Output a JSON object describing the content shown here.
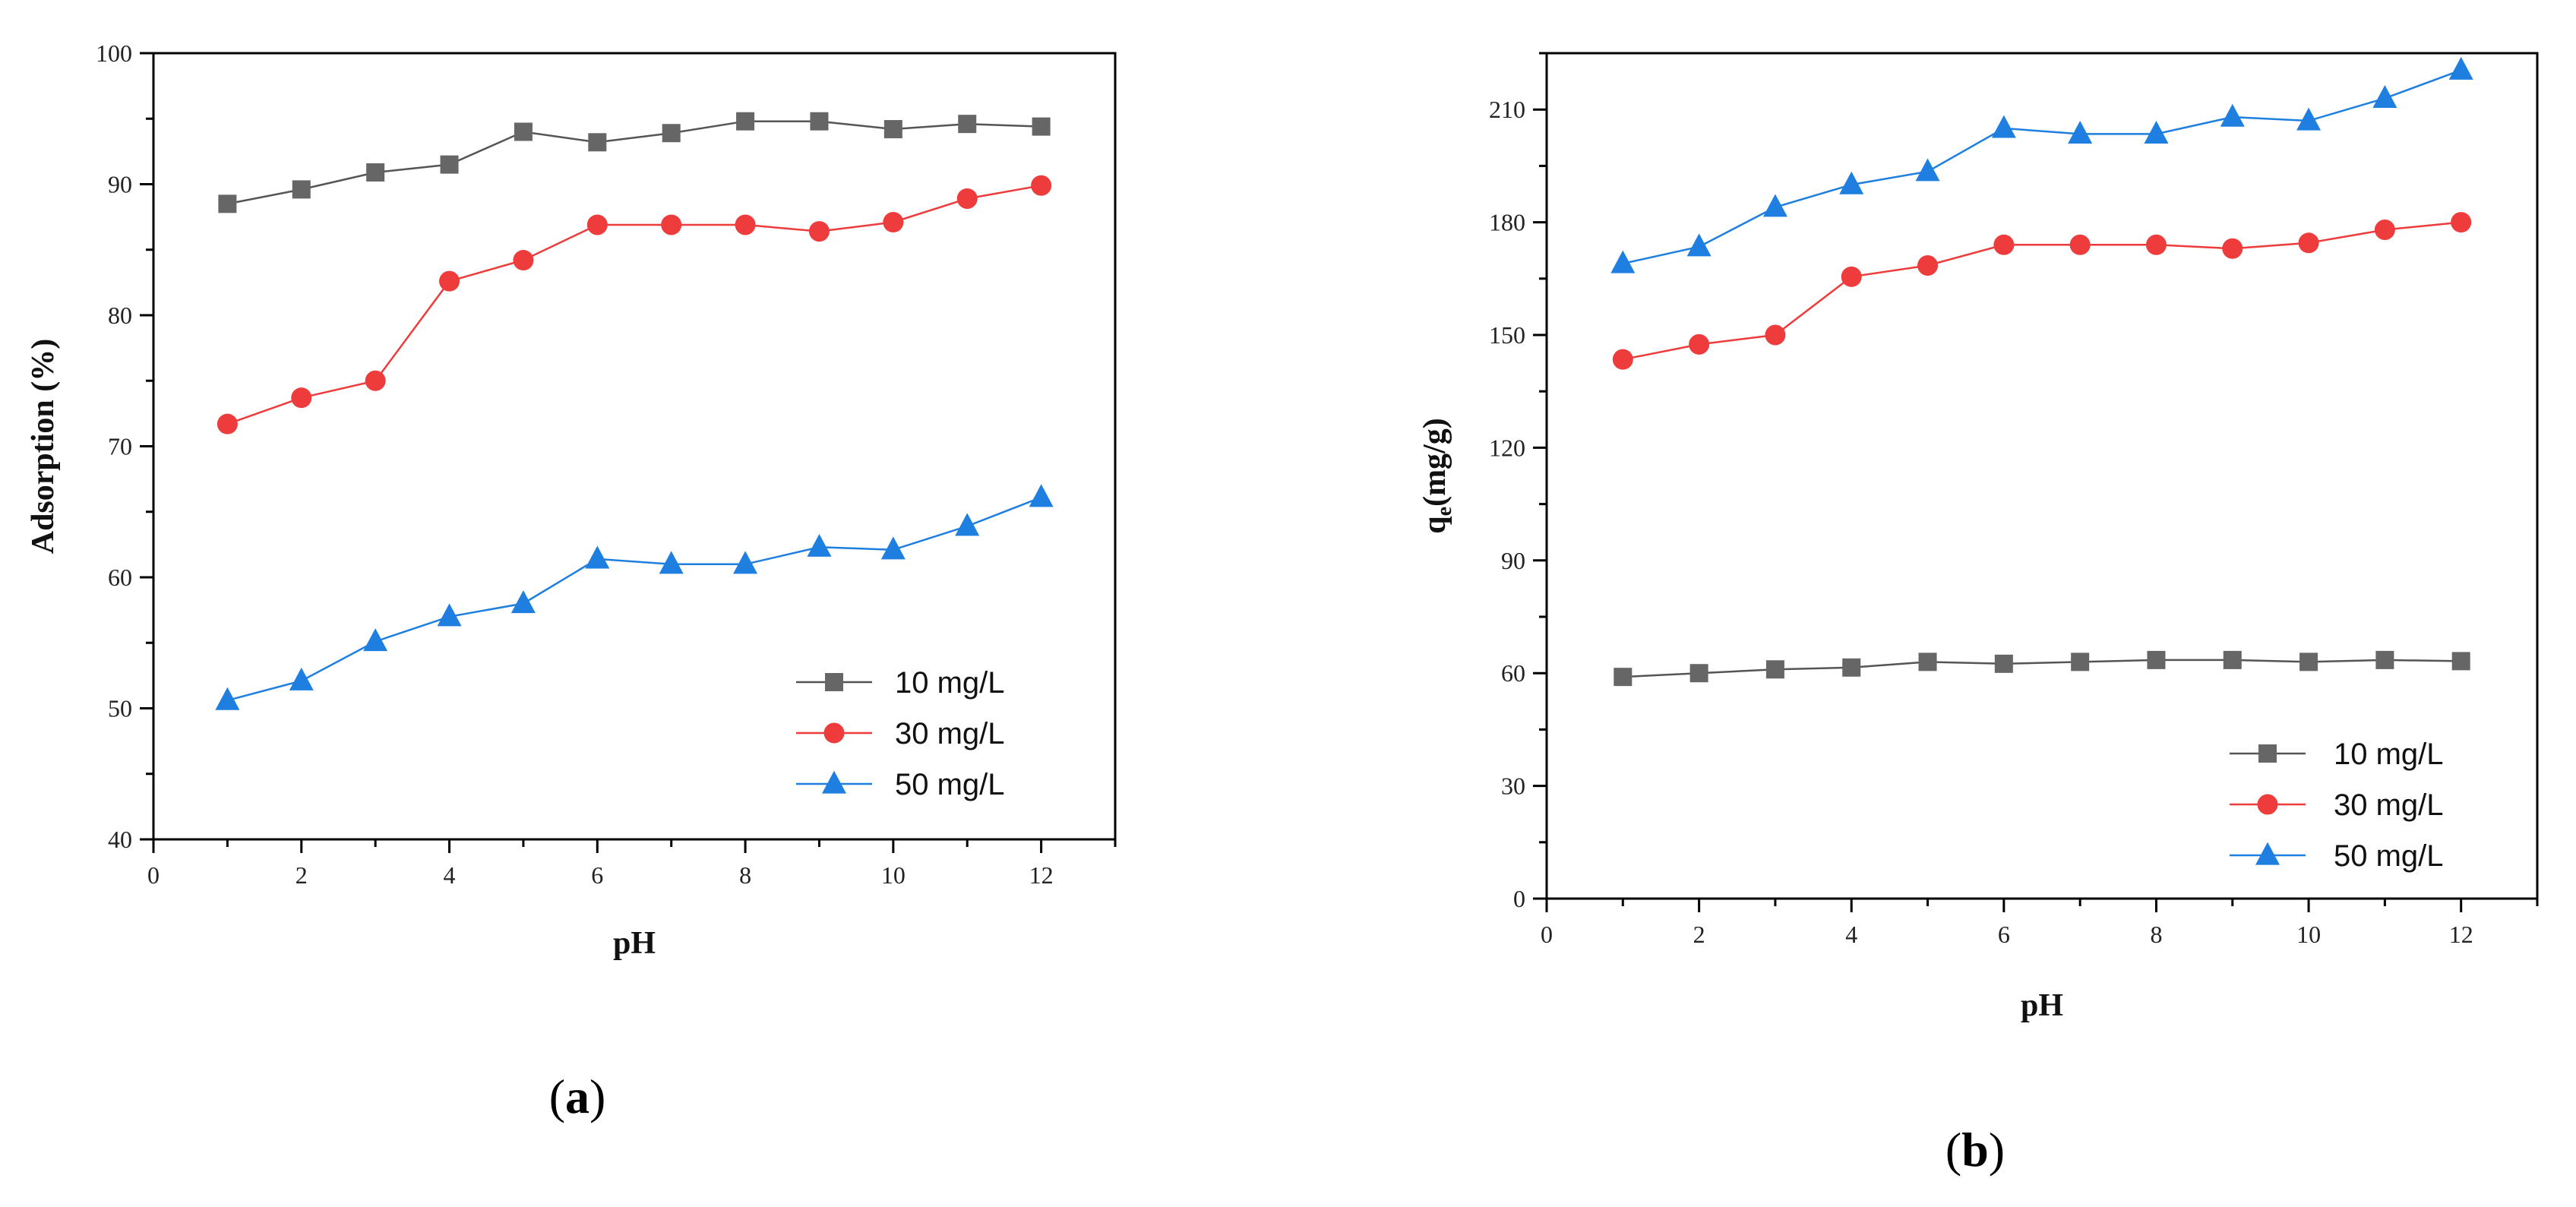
{
  "chart_data": [
    {
      "type": "line",
      "panel_label": "(a)",
      "panel_label_text": "a",
      "xlabel": "pH",
      "ylabel": "Adsorption (%)",
      "xlim": [
        0,
        13
      ],
      "ylim": [
        40,
        100
      ],
      "xticks": [
        0,
        2,
        4,
        6,
        8,
        10,
        12
      ],
      "yticks": [
        40,
        50,
        60,
        70,
        80,
        90,
        100
      ],
      "legend_position": "lower-right",
      "x": [
        1,
        2,
        3,
        4,
        5,
        6,
        7,
        8,
        9,
        10,
        11,
        12
      ],
      "series": [
        {
          "name": "10 mg/L",
          "marker": "square",
          "color": "#666666",
          "line_color": "#555555",
          "values": [
            88.5,
            89.6,
            90.9,
            91.5,
            94.0,
            93.2,
            93.9,
            94.8,
            94.8,
            94.2,
            94.6,
            94.4
          ]
        },
        {
          "name": "30 mg/L",
          "marker": "circle",
          "color": "#EE3B3B",
          "line_color": "#EE3B3B",
          "values": [
            71.7,
            73.7,
            75.0,
            82.6,
            84.2,
            86.9,
            86.9,
            86.9,
            86.4,
            87.1,
            88.9,
            89.9
          ]
        },
        {
          "name": "50 mg/L",
          "marker": "triangle",
          "color": "#1E7FE0",
          "line_color": "#1E7FE0",
          "values": [
            50.6,
            52.1,
            55.1,
            57.0,
            58.0,
            61.4,
            61.0,
            61.0,
            62.3,
            62.1,
            63.9,
            66.1
          ]
        }
      ]
    },
    {
      "type": "line",
      "panel_label": "(b)",
      "panel_label_text": "b",
      "xlabel": "pH",
      "ylabel": "q",
      "ylabel_subscript": "e",
      "ylabel_unit": "(mg/g)",
      "xlim": [
        0,
        13
      ],
      "ylim": [
        0,
        225
      ],
      "xticks": [
        0,
        2,
        4,
        6,
        8,
        10,
        12
      ],
      "yticks": [
        0,
        30,
        60,
        90,
        120,
        150,
        180,
        210
      ],
      "legend_position": "lower-right",
      "x": [
        1,
        2,
        3,
        4,
        5,
        6,
        7,
        8,
        9,
        10,
        11,
        12
      ],
      "series": [
        {
          "name": "10 mg/L",
          "marker": "square",
          "color": "#666666",
          "line_color": "#555555",
          "values": [
            59,
            60,
            61,
            61.5,
            63,
            62.5,
            63,
            63.5,
            63.5,
            63,
            63.5,
            63.2
          ]
        },
        {
          "name": "30 mg/L",
          "marker": "circle",
          "color": "#EE3B3B",
          "line_color": "#EE3B3B",
          "values": [
            143.5,
            147.5,
            150.0,
            165.5,
            168.5,
            174.0,
            174.0,
            174.0,
            173.0,
            174.5,
            178.0,
            180.0
          ]
        },
        {
          "name": "50 mg/L",
          "marker": "triangle",
          "color": "#1E7FE0",
          "line_color": "#1E7FE0",
          "values": [
            169.0,
            173.5,
            184.0,
            190.0,
            193.5,
            205.0,
            203.5,
            203.5,
            208.0,
            207.0,
            213.0,
            220.5
          ]
        }
      ]
    }
  ]
}
